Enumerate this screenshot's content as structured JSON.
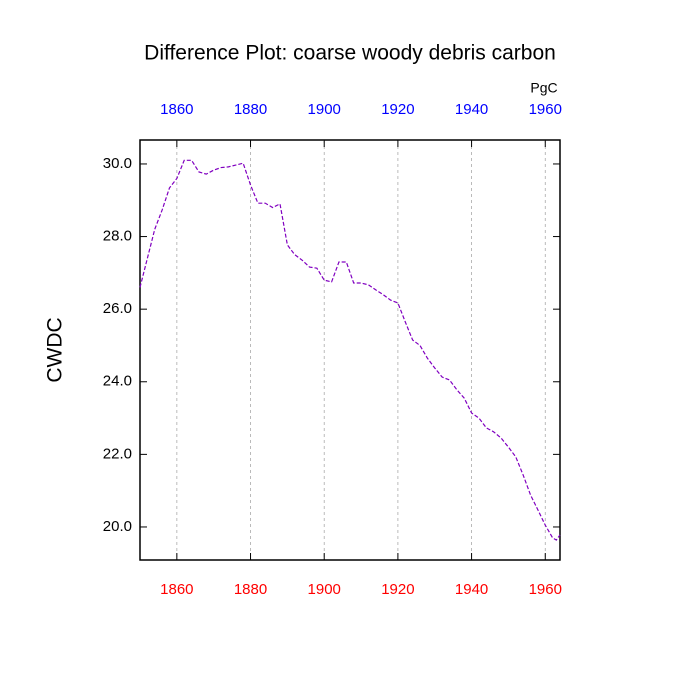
{
  "chart_data": {
    "type": "line",
    "title": "Difference Plot: coarse woody debris carbon",
    "y_label": "CWDC",
    "units": "PgC",
    "x": [
      1850,
      1852,
      1854,
      1856,
      1858,
      1860,
      1862,
      1864,
      1866,
      1868,
      1870,
      1872,
      1874,
      1876,
      1878,
      1880,
      1882,
      1884,
      1886,
      1888,
      1890,
      1892,
      1894,
      1896,
      1898,
      1900,
      1902,
      1904,
      1906,
      1908,
      1910,
      1912,
      1914,
      1916,
      1918,
      1920,
      1922,
      1924,
      1926,
      1928,
      1930,
      1932,
      1934,
      1936,
      1938,
      1940,
      1942,
      1944,
      1946,
      1948,
      1950,
      1952,
      1954,
      1956,
      1958,
      1960,
      1962,
      1963,
      1964
    ],
    "series": [
      {
        "color": "#8000c0",
        "values": [
          26.6,
          27.4,
          28.2,
          28.73,
          29.34,
          29.6,
          30.1,
          30.1,
          29.78,
          29.72,
          29.83,
          29.9,
          29.92,
          29.97,
          30.02,
          29.42,
          28.92,
          28.92,
          28.8,
          28.9,
          27.77,
          27.5,
          27.35,
          27.16,
          27.13,
          26.8,
          26.75,
          27.3,
          27.3,
          26.72,
          26.72,
          26.67,
          26.53,
          26.4,
          26.25,
          26.17,
          25.65,
          25.15,
          25.0,
          24.65,
          24.38,
          24.13,
          24.05,
          23.78,
          23.55,
          23.14,
          23.0,
          22.73,
          22.62,
          22.45,
          22.2,
          21.93,
          21.43,
          20.88,
          20.47,
          20.05,
          19.7,
          19.64,
          19.78
        ]
      }
    ],
    "xlim": [
      1850,
      1964
    ],
    "ylim": [
      19.09,
      30.66
    ],
    "xticks": [
      1860,
      1880,
      1900,
      1920,
      1940,
      1960
    ],
    "yticks": [
      {
        "value": 20,
        "label": "20.0"
      },
      {
        "value": 22,
        "label": "22.0"
      },
      {
        "value": 24,
        "label": "24.0"
      },
      {
        "value": 26,
        "label": "26.0"
      },
      {
        "value": 28,
        "label": "28.0"
      },
      {
        "value": 30,
        "label": "30.0"
      }
    ],
    "grid": true
  }
}
